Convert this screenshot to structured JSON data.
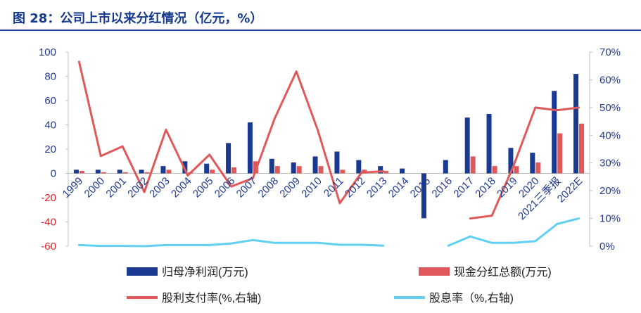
{
  "header": {
    "title": "图 28：公司上市以来分红情况（亿元，%）"
  },
  "colors": {
    "accent": "#14398e",
    "net_profit": "#1a3a91",
    "dividend": "#e0585a",
    "payout": "#e0585a",
    "yield": "#5fd0f2",
    "negative_tick": "#e01f26"
  },
  "chart_data": {
    "type": "bar",
    "title": "图 28：公司上市以来分红情况（亿元，%）",
    "categories": [
      "1999",
      "2000",
      "2001",
      "2002",
      "2003",
      "2004",
      "2005",
      "2006",
      "2007",
      "2008",
      "2009",
      "2010",
      "2011",
      "2012",
      "2013",
      "2014",
      "2015",
      "2016",
      "2017",
      "2018",
      "2019",
      "2020",
      "2021三季报",
      "2022E"
    ],
    "left_axis": {
      "range": [
        -60,
        100
      ],
      "ticks": [
        "100",
        "80",
        "60",
        "40",
        "20",
        "0",
        "-20",
        "-40",
        "-60"
      ]
    },
    "right_axis": {
      "range": [
        0,
        70
      ],
      "ticks": [
        "70%",
        "60%",
        "50%",
        "40%",
        "30%",
        "20%",
        "10%",
        "0%"
      ]
    },
    "series": [
      {
        "name": "归母净利润(万元)",
        "type": "bar",
        "axis": "left",
        "values": [
          3,
          3,
          3,
          3,
          6,
          10,
          8,
          25,
          42,
          12,
          9,
          14,
          18,
          11,
          6,
          4,
          -37,
          11,
          46,
          49,
          21,
          17,
          68,
          82
        ]
      },
      {
        "name": "现金分红总额(万元)",
        "type": "bar",
        "axis": "left",
        "values": [
          2,
          1,
          1,
          1,
          3,
          1,
          3,
          5,
          10,
          6,
          6,
          6,
          3,
          3,
          2,
          0,
          0,
          0,
          14,
          6,
          6,
          9,
          33,
          41
        ]
      },
      {
        "name": "股利支付率(%,右轴)",
        "type": "line",
        "axis": "right",
        "values": [
          66.5,
          32.5,
          36,
          19.5,
          42,
          25.5,
          33,
          21.5,
          24.5,
          46,
          63,
          41.5,
          15.5,
          26.5,
          27,
          null,
          null,
          null,
          10,
          11,
          29,
          50,
          49,
          50
        ]
      },
      {
        "name": "股息率（%,右轴)",
        "type": "line",
        "axis": "right",
        "values": [
          0.4,
          0.1,
          0.1,
          0,
          0.4,
          0.4,
          0.4,
          1,
          2.2,
          1.2,
          1.2,
          1.2,
          0.5,
          0.5,
          0.2,
          null,
          null,
          0.2,
          3.5,
          1.2,
          1.2,
          1.8,
          8,
          10
        ]
      }
    ]
  }
}
